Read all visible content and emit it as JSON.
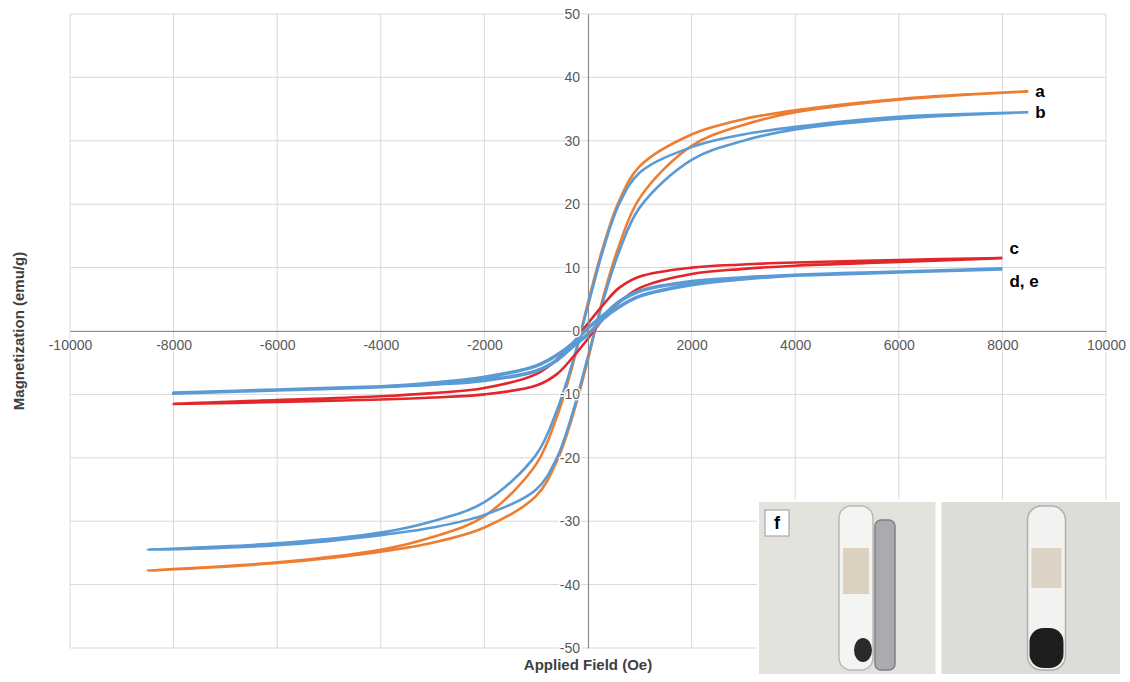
{
  "chart_data": {
    "type": "line",
    "x_label": "Applied Field (Oe)",
    "y_label": "Magnetization (emu/g)",
    "xlim": [
      -10000,
      10000
    ],
    "xticks": [
      -10000,
      -8000,
      -6000,
      -4000,
      -2000,
      2000,
      4000,
      6000,
      8000,
      10000
    ],
    "ylim": [
      -50,
      50
    ],
    "yticks": [
      -50,
      -40,
      -30,
      -20,
      -10,
      0,
      10,
      20,
      30,
      40,
      50
    ],
    "grid": true,
    "annotations": [
      "f"
    ],
    "series": [
      {
        "name": "a",
        "color": "#ed7d31",
        "x": [
          8500,
          6000,
          4000,
          3000,
          2000,
          1000,
          600,
          300,
          0,
          -300,
          -600,
          -1000,
          -2000,
          -3000,
          -4000,
          -6000,
          -8500,
          -6000,
          -4000,
          -3000,
          -2000,
          -1000,
          -600,
          -300,
          0,
          300,
          600,
          1000,
          2000,
          3000,
          4000,
          6000,
          8500
        ],
        "values": [
          37.8,
          36.6,
          34.8,
          33.4,
          31.0,
          26.0,
          20.5,
          13.5,
          4.5,
          -5.5,
          -13.5,
          -21.0,
          -29.2,
          -32.5,
          -34.5,
          -36.5,
          -37.8,
          -36.6,
          -34.8,
          -33.4,
          -31.0,
          -26.0,
          -20.5,
          -13.5,
          -4.5,
          5.5,
          13.5,
          21.0,
          29.2,
          32.5,
          34.5,
          36.5,
          37.8
        ]
      },
      {
        "name": "b",
        "color": "#5b9bd5",
        "x": [
          8500,
          6000,
          4000,
          3000,
          2000,
          1000,
          600,
          300,
          0,
          -300,
          -600,
          -1000,
          -2000,
          -3000,
          -4000,
          -6000,
          -8500,
          -6000,
          -4000,
          -3000,
          -2000,
          -1000,
          -600,
          -300,
          0,
          300,
          600,
          1000,
          2000,
          3000,
          4000,
          6000,
          8500
        ],
        "values": [
          34.5,
          33.8,
          32.2,
          31.0,
          29.0,
          25.0,
          20.0,
          13.0,
          4.0,
          -5.0,
          -12.5,
          -19.5,
          -27.0,
          -30.0,
          -31.8,
          -33.5,
          -34.5,
          -33.8,
          -32.2,
          -31.0,
          -29.0,
          -25.0,
          -20.0,
          -13.0,
          -4.0,
          5.0,
          12.5,
          19.5,
          27.0,
          30.0,
          31.8,
          33.5,
          34.5
        ]
      },
      {
        "name": "c",
        "color": "#e3262a",
        "x": [
          8000,
          6000,
          4000,
          3000,
          2000,
          1000,
          600,
          300,
          0,
          -300,
          -600,
          -1000,
          -2000,
          -3000,
          -4000,
          -6000,
          -8000,
          -6000,
          -4000,
          -3000,
          -2000,
          -1000,
          -600,
          -300,
          0,
          300,
          600,
          1000,
          2000,
          3000,
          4000,
          6000,
          8000
        ],
        "values": [
          11.5,
          11.2,
          10.8,
          10.5,
          10.0,
          8.6,
          6.8,
          4.2,
          1.2,
          -2.0,
          -4.5,
          -6.8,
          -9.0,
          -9.8,
          -10.3,
          -10.9,
          -11.5,
          -11.2,
          -10.8,
          -10.5,
          -10.0,
          -8.6,
          -6.8,
          -4.2,
          -1.2,
          2.0,
          4.5,
          6.8,
          9.0,
          9.8,
          10.3,
          10.9,
          11.5
        ]
      },
      {
        "name": "d, e",
        "color": "#5b9bd5",
        "x": [
          8000,
          6000,
          4000,
          3000,
          2000,
          1000,
          600,
          300,
          0,
          -300,
          -600,
          -1000,
          -2000,
          -3000,
          -4000,
          -6000,
          -8000,
          -6000,
          -4000,
          -3000,
          -2000,
          -1000,
          -600,
          -300,
          0,
          300,
          600,
          1000,
          2000,
          3000,
          4000,
          6000,
          8000
        ],
        "values": [
          9.8,
          9.3,
          8.8,
          8.4,
          7.8,
          6.3,
          4.6,
          2.5,
          0.5,
          -2.0,
          -3.8,
          -5.5,
          -7.3,
          -8.2,
          -8.8,
          -9.3,
          -9.8,
          -9.3,
          -8.8,
          -8.4,
          -7.8,
          -6.3,
          -4.6,
          -2.5,
          -0.5,
          2.0,
          3.8,
          5.5,
          7.3,
          8.2,
          8.8,
          9.3,
          9.8
        ]
      }
    ]
  }
}
